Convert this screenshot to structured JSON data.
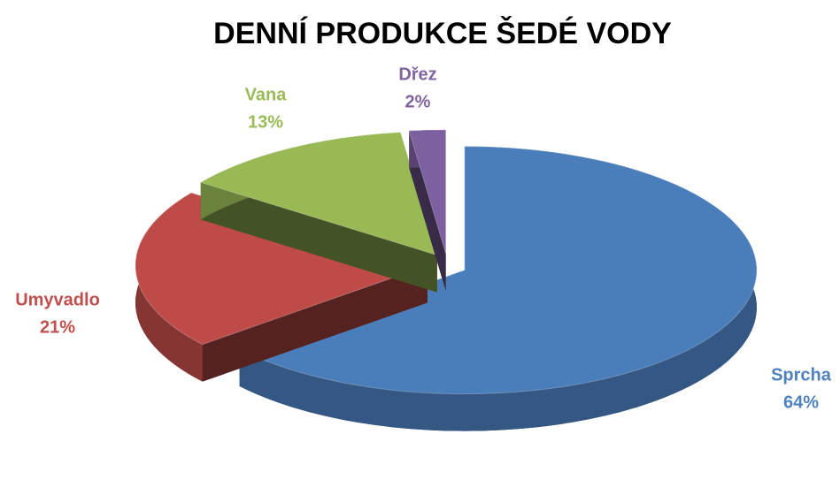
{
  "chart_data": {
    "type": "pie",
    "title": "DENNÍ PRODUKCE ŠEDÉ VODY",
    "categories": [
      "Sprcha",
      "Umyvadlo",
      "Vana",
      "Dřez"
    ],
    "values": [
      64,
      21,
      13,
      2
    ],
    "value_labels": [
      "64%",
      "21%",
      "13%",
      "2%"
    ],
    "colors": [
      "#4a7ebb",
      "#be4b48",
      "#98b954",
      "#7d60a0"
    ]
  }
}
